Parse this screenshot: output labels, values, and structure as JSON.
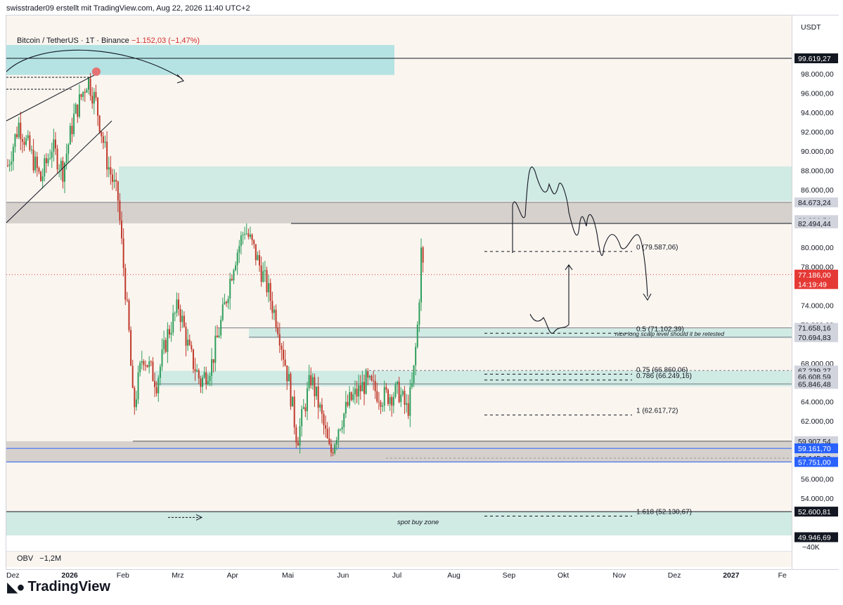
{
  "header": {
    "credit": "swisstrader09 erstellt mit TradingView.com, Aug 22, 2026 11:40 UTC+2",
    "symbol": "Bitcoin / TetherUS · 1T · Binance",
    "change": "−1.152,03 (−1,47%)"
  },
  "obv": {
    "label": "OBV",
    "value": "−1,2M",
    "axis_label": "−40K"
  },
  "currency": "USDT",
  "logo": "TradingView",
  "colors": {
    "bull": "#2e9e5b",
    "bear": "#c0392b",
    "zone_teal": "#b2dfdb",
    "zone_grey": "#bdbdbd",
    "blue_line": "#2962ff",
    "bg": "#faf5ef"
  },
  "chart_data": {
    "type": "candlestick",
    "title": "Bitcoin / TetherUS · 1T · Binance",
    "ylim": [
      44000,
      101000
    ],
    "xlim_months": [
      "Dez",
      "2026",
      "Feb",
      "Mrz",
      "Apr",
      "Mai",
      "Jun",
      "Jul",
      "Aug",
      "Sep",
      "Okt",
      "Nov",
      "Dez",
      "2027",
      "Fe"
    ],
    "y_ticks": [
      "98.000,00",
      "96.000,00",
      "94.000,00",
      "92.000,00",
      "90.000,00",
      "88.000,00",
      "86.000,00",
      "80.000,00",
      "78.000,00",
      "74.000,00",
      "72.000,00",
      "68.000,00",
      "64.000,00",
      "62.000,00",
      "56.000,00",
      "54.000,00",
      "50.000,00"
    ],
    "price_labels": [
      {
        "value": 99619.27,
        "text": "99.619,27",
        "style": "dark"
      },
      {
        "value": 84673.24,
        "text": "84.673,24",
        "style": "grey"
      },
      {
        "value": 82836.54,
        "text": "82.836,54",
        "style": "grey"
      },
      {
        "value": 82494.44,
        "text": "82.494,44",
        "style": "grey"
      },
      {
        "value": 77186.0,
        "text": "77.186,00",
        "style": "red"
      },
      {
        "value": 76200,
        "text": "14:19:49",
        "style": "red"
      },
      {
        "value": 71658.16,
        "text": "71.658,16",
        "style": "grey"
      },
      {
        "value": 70694.83,
        "text": "70.694,83",
        "style": "grey"
      },
      {
        "value": 67239.27,
        "text": "67.239,27",
        "style": "grey"
      },
      {
        "value": 66608.59,
        "text": "66.608,59",
        "style": "grey"
      },
      {
        "value": 65846.48,
        "text": "65.846,48",
        "style": "grey"
      },
      {
        "value": 59907.54,
        "text": "59.907,54",
        "style": "grey"
      },
      {
        "value": 59161.7,
        "text": "59.161,70",
        "style": "blue"
      },
      {
        "value": 58145.29,
        "text": "58.145,29",
        "style": "grey"
      },
      {
        "value": 57751.0,
        "text": "57.751,00",
        "style": "blue"
      },
      {
        "value": 52600.81,
        "text": "52.600,81",
        "style": "dark"
      },
      {
        "value": 49946.69,
        "text": "49.946,69",
        "style": "dark"
      }
    ],
    "fib_levels": [
      {
        "label": "0 (79.587,06)",
        "value": 79587.06
      },
      {
        "label": "0.5 (71.102,39)",
        "value": 71102.39
      },
      {
        "label": "0.75 (66.860,06)",
        "value": 66860.06
      },
      {
        "label": "0.786 (66.249,16)",
        "value": 66249.16
      },
      {
        "label": "1 (62.617,72)",
        "value": 62617.72
      },
      {
        "label": "1.618 (52.130,67)",
        "value": 52130.67
      }
    ],
    "annotations": [
      "nice long scalp level should it be retested",
      "spot buy zone"
    ],
    "zones": [
      {
        "from": 97900,
        "to": 101000,
        "color": "teal",
        "x_end": "Jan"
      },
      {
        "from": 84800,
        "to": 88400,
        "color": "teal"
      },
      {
        "from": 82500,
        "to": 84700,
        "color": "grey"
      },
      {
        "from": 70600,
        "to": 71600,
        "color": "teal"
      },
      {
        "from": 65600,
        "to": 67200,
        "color": "teal"
      },
      {
        "from": 57700,
        "to": 59900,
        "color": "grey"
      },
      {
        "from": 49900,
        "to": 52600,
        "color": "teal"
      }
    ],
    "current_price": 77186.0,
    "anchors": [
      {
        "month": 0.0,
        "price": 88500
      },
      {
        "month": 0.2,
        "price": 92800
      },
      {
        "month": 0.4,
        "price": 90000
      },
      {
        "month": 0.6,
        "price": 87000
      },
      {
        "month": 0.8,
        "price": 90500
      },
      {
        "month": 1.0,
        "price": 88000
      },
      {
        "month": 1.2,
        "price": 93500
      },
      {
        "month": 1.45,
        "price": 97500
      },
      {
        "month": 1.6,
        "price": 95000
      },
      {
        "month": 1.8,
        "price": 89000
      },
      {
        "month": 2.0,
        "price": 85000
      },
      {
        "month": 2.1,
        "price": 78000
      },
      {
        "month": 2.2,
        "price": 71000
      },
      {
        "month": 2.28,
        "price": 63000
      },
      {
        "month": 2.45,
        "price": 69000
      },
      {
        "month": 2.7,
        "price": 66000
      },
      {
        "month": 2.9,
        "price": 71000
      },
      {
        "month": 3.1,
        "price": 74000
      },
      {
        "month": 3.3,
        "price": 69000
      },
      {
        "month": 3.5,
        "price": 66000
      },
      {
        "month": 3.7,
        "price": 68000
      },
      {
        "month": 3.9,
        "price": 73000
      },
      {
        "month": 4.1,
        "price": 78500
      },
      {
        "month": 4.3,
        "price": 82000
      },
      {
        "month": 4.45,
        "price": 80000
      },
      {
        "month": 4.7,
        "price": 76000
      },
      {
        "month": 4.9,
        "price": 72000
      },
      {
        "month": 5.1,
        "price": 66000
      },
      {
        "month": 5.25,
        "price": 60000
      },
      {
        "month": 5.5,
        "price": 66500
      },
      {
        "month": 5.65,
        "price": 63500
      },
      {
        "month": 5.85,
        "price": 58500
      },
      {
        "month": 6.0,
        "price": 61500
      },
      {
        "month": 6.2,
        "price": 64000
      },
      {
        "month": 6.5,
        "price": 66000
      },
      {
        "month": 6.8,
        "price": 64500
      },
      {
        "month": 7.1,
        "price": 65000
      },
      {
        "month": 7.25,
        "price": 63000
      },
      {
        "month": 7.35,
        "price": 66000
      },
      {
        "month": 7.45,
        "price": 73000
      },
      {
        "month": 7.5,
        "price": 79500
      },
      {
        "month": 7.55,
        "price": 77200
      }
    ]
  }
}
